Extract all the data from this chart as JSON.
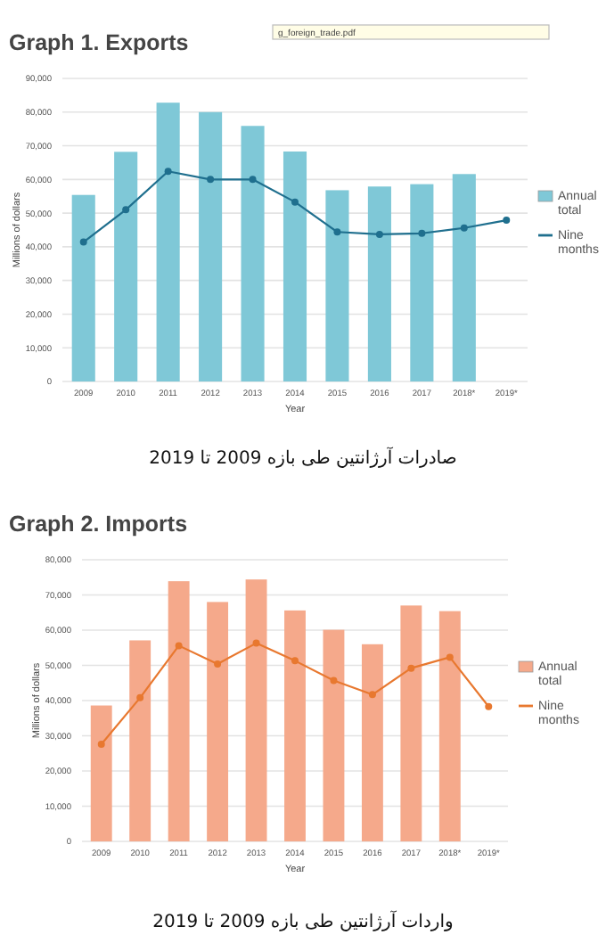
{
  "chart_data": [
    {
      "type": "bar",
      "title": "Graph 1. Exports",
      "xlabel": "Year",
      "ylabel": "Millions of dollars",
      "categories": [
        "2009",
        "2010",
        "2011",
        "2012",
        "2013",
        "2014",
        "2015",
        "2016",
        "2017",
        "2018*",
        "2019*"
      ],
      "series": [
        {
          "name": "Annual total",
          "color": "#7fc8d7",
          "values": [
            55400,
            68200,
            82800,
            80000,
            75900,
            68300,
            56800,
            57900,
            58600,
            61600,
            null
          ]
        },
        {
          "name": "Nine months",
          "type": "line",
          "color": "#1f6f8e",
          "values": [
            41400,
            51000,
            62400,
            60000,
            60000,
            53300,
            44400,
            43700,
            44000,
            45600,
            47900
          ]
        }
      ],
      "ylim": [
        0,
        90000
      ],
      "yticks": [
        0,
        {
          "value": 10000,
          "label": "10,000"
        },
        {
          "value": 20000,
          "label": "20,000"
        },
        {
          "value": 30000,
          "label": "30,000"
        },
        {
          "value": 40000,
          "label": "40,000"
        },
        {
          "value": 50000,
          "label": "50,000"
        },
        {
          "value": 60000,
          "label": "60,000"
        },
        {
          "value": 70000,
          "label": "70,000"
        },
        {
          "value": 80000,
          "label": "80,000"
        },
        {
          "value": 90000,
          "label": "90,000"
        }
      ],
      "grid": "y",
      "legend": "right",
      "marker": "circle",
      "line_style": "solid",
      "annotations": [
        "g_foreign_trade.pdf",
        "صادرات آرژانتین طی بازه 2009 تا 2019"
      ]
    },
    {
      "type": "bar",
      "title": "Graph 2. Imports",
      "xlabel": "Year",
      "ylabel": "Millions of dollars",
      "categories": [
        "2009",
        "2010",
        "2011",
        "2012",
        "2013",
        "2014",
        "2015",
        "2016",
        "2017",
        "2018*",
        "2019*"
      ],
      "series": [
        {
          "name": "Annual total",
          "color": "#f5a98b",
          "values": [
            38600,
            57100,
            73900,
            68000,
            74400,
            65600,
            60100,
            56000,
            67000,
            65400,
            null
          ]
        },
        {
          "name": "Nine months",
          "type": "line",
          "color": "#e8782f",
          "values": [
            27600,
            40800,
            55600,
            50400,
            56300,
            51300,
            45700,
            41700,
            49200,
            52300,
            38300
          ]
        }
      ],
      "ylim": [
        0,
        80000
      ],
      "yticks": [
        0,
        {
          "value": 10000,
          "label": "10,000"
        },
        {
          "value": 20000,
          "label": "20,000"
        },
        {
          "value": 30000,
          "label": "30,000"
        },
        {
          "value": 40000,
          "label": "40,000"
        },
        {
          "value": 50000,
          "label": "50,000"
        },
        {
          "value": 60000,
          "label": "60,000"
        },
        {
          "value": 70000,
          "label": "70,000"
        },
        {
          "value": 80000,
          "label": "80,000"
        }
      ],
      "grid": "y",
      "legend": "right",
      "marker": "circle",
      "line_style": "solid",
      "annotations": [
        "واردات آرژانتین طی بازه 2009 تا 2019"
      ]
    }
  ]
}
